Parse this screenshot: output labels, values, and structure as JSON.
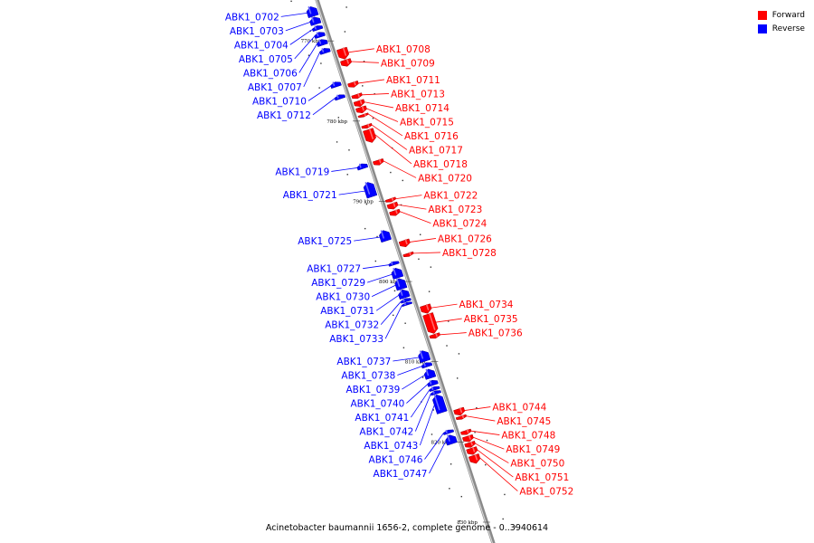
{
  "legend": {
    "position": "top-right",
    "items": [
      {
        "label": "Forward",
        "color": "#ff0000"
      },
      {
        "label": "Reverse",
        "color": "#0000ff"
      }
    ]
  },
  "caption": "Acinetobacter baumannii 1656-2, complete genome - 0..3940614",
  "colors": {
    "forward": "#ff0000",
    "reverse": "#0000ff",
    "backbone": "#999999"
  },
  "ticks": [
    {
      "label": "770 kbp",
      "kbp": 770
    },
    {
      "label": "780 kbp",
      "kbp": 780
    },
    {
      "label": "790 kbp",
      "kbp": 790
    },
    {
      "label": "800 kbp",
      "kbp": 800
    },
    {
      "label": "810 kbp",
      "kbp": 810
    },
    {
      "label": "820 kbp",
      "kbp": 820
    },
    {
      "label": "830 kbp",
      "kbp": 830
    }
  ],
  "genes": [
    {
      "id": "ABK1_0702",
      "strand": "reverse",
      "start_kbp": 765.4,
      "end_kbp": 766.6
    },
    {
      "id": "ABK1_0703",
      "strand": "reverse",
      "start_kbp": 766.7,
      "end_kbp": 767.6
    },
    {
      "id": "ABK1_0704",
      "strand": "reverse",
      "start_kbp": 767.8,
      "end_kbp": 768.3
    },
    {
      "id": "ABK1_0705",
      "strand": "reverse",
      "start_kbp": 768.6,
      "end_kbp": 769.2
    },
    {
      "id": "ABK1_0706",
      "strand": "reverse",
      "start_kbp": 769.5,
      "end_kbp": 770.2
    },
    {
      "id": "ABK1_0707",
      "strand": "reverse",
      "start_kbp": 770.6,
      "end_kbp": 771.2
    },
    {
      "id": "ABK1_0708",
      "strand": "forward",
      "start_kbp": 771.3,
      "end_kbp": 772.6
    },
    {
      "id": "ABK1_0709",
      "strand": "forward",
      "start_kbp": 772.7,
      "end_kbp": 773.5
    },
    {
      "id": "ABK1_0710",
      "strand": "reverse",
      "start_kbp": 774.8,
      "end_kbp": 775.4
    },
    {
      "id": "ABK1_0711",
      "strand": "forward",
      "start_kbp": 775.5,
      "end_kbp": 776.1
    },
    {
      "id": "ABK1_0712",
      "strand": "reverse",
      "start_kbp": 776.4,
      "end_kbp": 776.9
    },
    {
      "id": "ABK1_0713",
      "strand": "forward",
      "start_kbp": 777.0,
      "end_kbp": 777.5
    },
    {
      "id": "ABK1_0714",
      "strand": "forward",
      "start_kbp": 777.8,
      "end_kbp": 778.5
    },
    {
      "id": "ABK1_0715",
      "strand": "forward",
      "start_kbp": 778.6,
      "end_kbp": 779.3
    },
    {
      "id": "ABK1_0716",
      "strand": "forward",
      "start_kbp": 779.5,
      "end_kbp": 779.8
    },
    {
      "id": "ABK1_0717",
      "strand": "forward",
      "start_kbp": 780.8,
      "end_kbp": 781.2
    },
    {
      "id": "ABK1_0718",
      "strand": "forward",
      "start_kbp": 781.4,
      "end_kbp": 783.0
    },
    {
      "id": "ABK1_0719",
      "strand": "reverse",
      "start_kbp": 785.0,
      "end_kbp": 785.6
    },
    {
      "id": "ABK1_0720",
      "strand": "forward",
      "start_kbp": 785.2,
      "end_kbp": 785.8
    },
    {
      "id": "ABK1_0721",
      "strand": "reverse",
      "start_kbp": 787.3,
      "end_kbp": 789.1
    },
    {
      "id": "ABK1_0722",
      "strand": "forward",
      "start_kbp": 790.0,
      "end_kbp": 790.4
    },
    {
      "id": "ABK1_0723",
      "strand": "forward",
      "start_kbp": 790.6,
      "end_kbp": 791.3
    },
    {
      "id": "ABK1_0724",
      "strand": "forward",
      "start_kbp": 791.5,
      "end_kbp": 792.1
    },
    {
      "id": "ABK1_0725",
      "strand": "reverse",
      "start_kbp": 793.3,
      "end_kbp": 794.6
    },
    {
      "id": "ABK1_0726",
      "strand": "forward",
      "start_kbp": 795.2,
      "end_kbp": 796.0
    },
    {
      "id": "ABK1_0727",
      "strand": "reverse",
      "start_kbp": 797.2,
      "end_kbp": 797.6
    },
    {
      "id": "ABK1_0728",
      "strand": "forward",
      "start_kbp": 796.8,
      "end_kbp": 797.2
    },
    {
      "id": "ABK1_0729",
      "strand": "reverse",
      "start_kbp": 798.0,
      "end_kbp": 799.2
    },
    {
      "id": "ABK1_0730",
      "strand": "reverse",
      "start_kbp": 799.3,
      "end_kbp": 800.6
    },
    {
      "id": "ABK1_0731",
      "strand": "reverse",
      "start_kbp": 800.7,
      "end_kbp": 801.7
    },
    {
      "id": "ABK1_0732",
      "strand": "reverse",
      "start_kbp": 801.8,
      "end_kbp": 802.2
    },
    {
      "id": "ABK1_0733",
      "strand": "reverse",
      "start_kbp": 802.3,
      "end_kbp": 802.6
    },
    {
      "id": "ABK1_0734",
      "strand": "forward",
      "start_kbp": 803.3,
      "end_kbp": 804.3
    },
    {
      "id": "ABK1_0735",
      "strand": "forward",
      "start_kbp": 804.4,
      "end_kbp": 806.8
    },
    {
      "id": "ABK1_0736",
      "strand": "forward",
      "start_kbp": 806.9,
      "end_kbp": 807.4
    },
    {
      "id": "ABK1_0737",
      "strand": "reverse",
      "start_kbp": 808.3,
      "end_kbp": 809.6
    },
    {
      "id": "ABK1_0738",
      "strand": "reverse",
      "start_kbp": 809.8,
      "end_kbp": 810.3
    },
    {
      "id": "ABK1_0739",
      "strand": "reverse",
      "start_kbp": 810.6,
      "end_kbp": 811.7
    },
    {
      "id": "ABK1_0740",
      "strand": "reverse",
      "start_kbp": 812.0,
      "end_kbp": 812.6
    },
    {
      "id": "ABK1_0741",
      "strand": "reverse",
      "start_kbp": 812.8,
      "end_kbp": 813.2
    },
    {
      "id": "ABK1_0742",
      "strand": "reverse",
      "start_kbp": 813.3,
      "end_kbp": 813.7
    },
    {
      "id": "ABK1_0743",
      "strand": "reverse",
      "start_kbp": 813.8,
      "end_kbp": 816.0
    },
    {
      "id": "ABK1_0744",
      "strand": "forward",
      "start_kbp": 816.2,
      "end_kbp": 817.0
    },
    {
      "id": "ABK1_0745",
      "strand": "forward",
      "start_kbp": 817.1,
      "end_kbp": 817.5
    },
    {
      "id": "ABK1_0746",
      "strand": "reverse",
      "start_kbp": 818.2,
      "end_kbp": 818.6
    },
    {
      "id": "ABK1_0747",
      "strand": "reverse",
      "start_kbp": 818.8,
      "end_kbp": 819.9
    },
    {
      "id": "ABK1_0748",
      "strand": "forward",
      "start_kbp": 818.9,
      "end_kbp": 819.4
    },
    {
      "id": "ABK1_0749",
      "strand": "forward",
      "start_kbp": 819.6,
      "end_kbp": 820.3
    },
    {
      "id": "ABK1_0750",
      "strand": "forward",
      "start_kbp": 820.4,
      "end_kbp": 821.0
    },
    {
      "id": "ABK1_0751",
      "strand": "forward",
      "start_kbp": 821.1,
      "end_kbp": 821.9
    },
    {
      "id": "ABK1_0752",
      "strand": "forward",
      "start_kbp": 822.0,
      "end_kbp": 823.0
    }
  ]
}
